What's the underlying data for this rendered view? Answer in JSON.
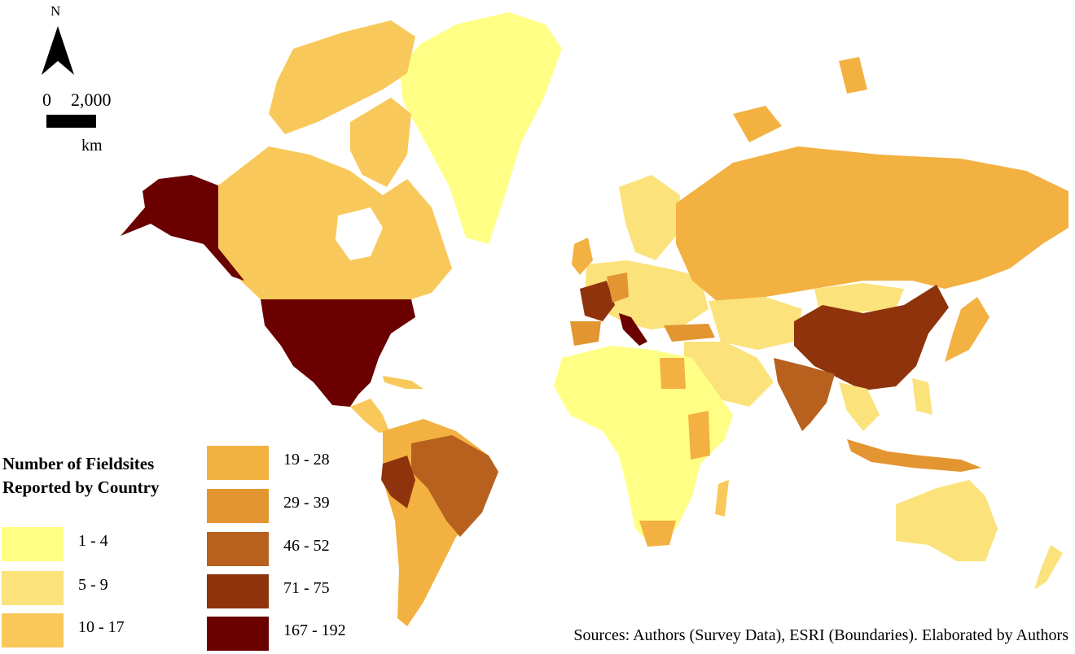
{
  "map": {
    "north_label": "N",
    "scale": {
      "zero": "0",
      "max": "2,000",
      "unit": "km"
    },
    "legend": {
      "title": "Number of Fieldsites Reported by Country",
      "classes": [
        {
          "label": "1 - 4",
          "color": "#ffff85"
        },
        {
          "label": "5 - 9",
          "color": "#fbe27a"
        },
        {
          "label": "10 - 17",
          "color": "#f8c95a"
        },
        {
          "label": "19 - 28",
          "color": "#f3b142"
        },
        {
          "label": "29 - 39",
          "color": "#e39531"
        },
        {
          "label": "46 - 52",
          "color": "#b8611e"
        },
        {
          "label": "71 - 75",
          "color": "#8f330d"
        },
        {
          "label": "167 - 192",
          "color": "#6b0000"
        }
      ]
    },
    "source_note": "Sources: Authors (Survey Data), ESRI (Boundaries). Elaborated by Authors"
  }
}
